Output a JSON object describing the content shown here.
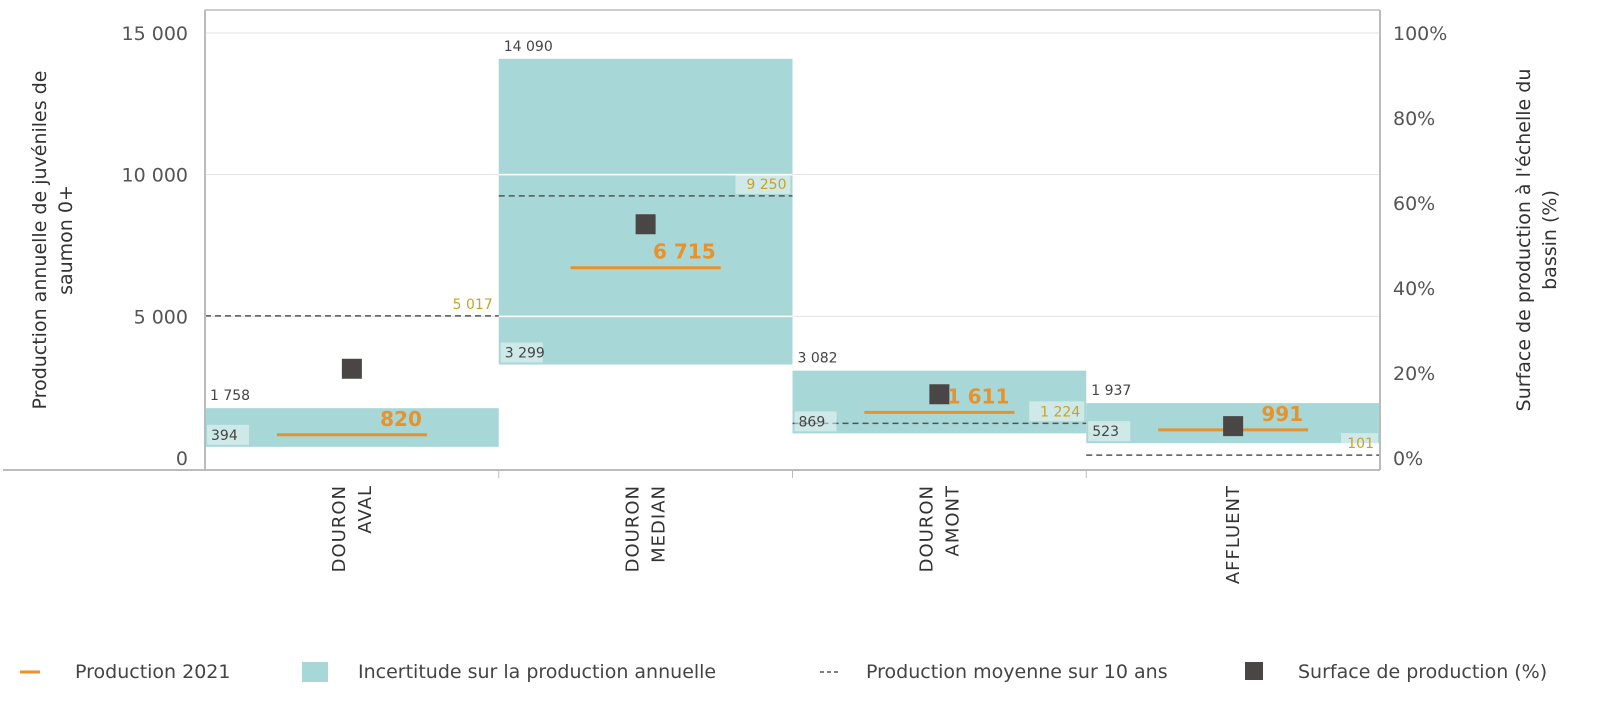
{
  "chart_data": {
    "type": "bar",
    "categories": [
      [
        "DOURON",
        "AVAL"
      ],
      [
        "DOURON",
        "MEDIAN"
      ],
      [
        "DOURON",
        "AMONT"
      ],
      [
        "AFFLUENT"
      ]
    ],
    "ylabel_lines": [
      "Production annuelle de juvéniles de",
      "saumon 0+"
    ],
    "y2label_lines": [
      "Surface de production à l'échelle du",
      "bassin (%)"
    ],
    "ylim": [
      0,
      15000
    ],
    "yticks": [
      0,
      5000,
      10000,
      15000
    ],
    "ytick_labels": [
      "0",
      "5 000",
      "10 000",
      "15 000"
    ],
    "y2lim": [
      0,
      100
    ],
    "y2ticks": [
      0,
      20,
      40,
      60,
      80,
      100
    ],
    "y2tick_labels": [
      "0%",
      "20%",
      "40%",
      "60%",
      "80%",
      "100%"
    ],
    "grid": true,
    "series": [
      {
        "name": "Production 2021",
        "values": [
          820,
          6715,
          1611,
          991
        ],
        "labels": [
          "820",
          "6 715",
          "1 611",
          "991"
        ]
      },
      {
        "name": "Incertitude sur la production annuelle",
        "low": [
          394,
          3299,
          869,
          523
        ],
        "high": [
          1758,
          14090,
          3082,
          1937
        ],
        "low_labels": [
          "394",
          "3 299",
          "869",
          "523"
        ],
        "high_labels": [
          "1 758",
          "14 090",
          "3 082",
          "1 937"
        ]
      },
      {
        "name": "Production moyenne sur 10 ans",
        "values": [
          5017,
          9250,
          1224,
          101
        ],
        "labels": [
          "5 017",
          "9 250",
          "1 224",
          "101"
        ]
      },
      {
        "name": "Surface de production (%)",
        "axis": "right",
        "values": [
          21,
          55,
          15,
          7.5
        ]
      }
    ],
    "legend_position": "bottom",
    "legend": [
      {
        "symbol": "—",
        "label": "Production 2021"
      },
      {
        "symbol": "■",
        "label": "Incertitude sur la production annuelle"
      },
      {
        "symbol": "---",
        "label": "Production moyenne sur 10 ans"
      },
      {
        "symbol": "■",
        "label": "Surface de production (%)"
      }
    ],
    "colors": {
      "production": "#E8922C",
      "uncertainty": "#A8D7D7",
      "mean": "#555555",
      "mean_label": "#C9A227",
      "surface": "#4A4646",
      "grid": "#E2E2E2",
      "axis": "#BBBBBB"
    }
  }
}
